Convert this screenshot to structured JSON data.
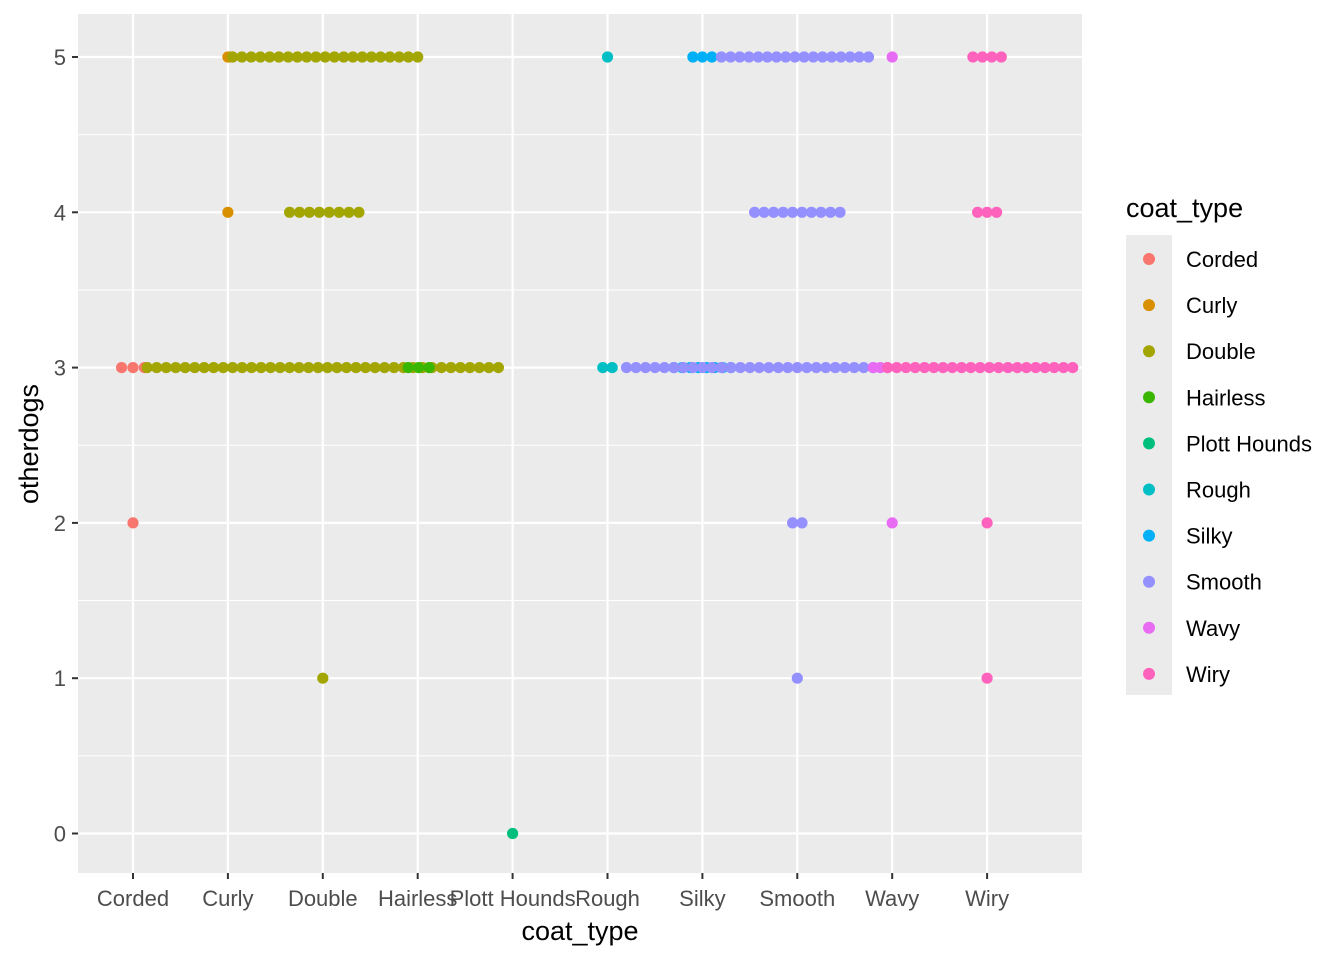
{
  "chart_data": {
    "type": "scatter",
    "xlabel": "coat_type",
    "ylabel": "otherdogs",
    "categories": [
      "Corded",
      "Curly",
      "Double",
      "Hairless",
      "Plott Hounds",
      "Rough",
      "Silky",
      "Smooth",
      "Wavy",
      "Wiry"
    ],
    "y_ticks": [
      0,
      1,
      2,
      3,
      4,
      5
    ],
    "ylim": [
      -0.27,
      5.27
    ],
    "legend": {
      "title": "coat_type",
      "placement": "right",
      "entries": [
        {
          "label": "Corded",
          "color": "#F8766D"
        },
        {
          "label": "Curly",
          "color": "#D89000"
        },
        {
          "label": "Double",
          "color": "#A3A500"
        },
        {
          "label": "Hairless",
          "color": "#39B600"
        },
        {
          "label": "Plott Hounds",
          "color": "#00BF7D"
        },
        {
          "label": "Rough",
          "color": "#00BFC4"
        },
        {
          "label": "Silky",
          "color": "#00B0F6"
        },
        {
          "label": "Smooth",
          "color": "#9590FF"
        },
        {
          "label": "Wavy",
          "color": "#E76BF3"
        },
        {
          "label": "Wiry",
          "color": "#FF62BC"
        }
      ]
    },
    "point_runs": [
      {
        "series": "Corded",
        "y": 3,
        "x_start": 0.88,
        "x_end": 1.12,
        "count": 3
      },
      {
        "series": "Corded",
        "y": 2,
        "x_start": 1.0,
        "x_end": 1.0,
        "count": 1
      },
      {
        "series": "Curly",
        "y": 5,
        "x_start": 2.0,
        "x_end": 2.02,
        "count": 2
      },
      {
        "series": "Curly",
        "y": 4,
        "x_start": 2.0,
        "x_end": 2.0,
        "count": 1
      },
      {
        "series": "Double",
        "y": 5,
        "x_start": 2.05,
        "x_end": 4.0,
        "count": 21
      },
      {
        "series": "Double",
        "y": 4,
        "x_start": 2.65,
        "x_end": 3.38,
        "count": 8
      },
      {
        "series": "Double",
        "y": 3,
        "x_start": 1.15,
        "x_end": 4.85,
        "count": 38
      },
      {
        "series": "Double",
        "y": 1,
        "x_start": 3.0,
        "x_end": 3.0,
        "count": 1
      },
      {
        "series": "Hairless",
        "y": 3,
        "x_start": 3.9,
        "x_end": 4.12,
        "count": 3
      },
      {
        "series": "Plott Hounds",
        "y": 0,
        "x_start": 5.0,
        "x_end": 5.0,
        "count": 1
      },
      {
        "series": "Rough",
        "y": 5,
        "x_start": 6.0,
        "x_end": 6.0,
        "count": 1
      },
      {
        "series": "Rough",
        "y": 3,
        "x_start": 5.95,
        "x_end": 6.05,
        "count": 2
      },
      {
        "series": "Silky",
        "y": 5,
        "x_start": 6.9,
        "x_end": 7.1,
        "count": 3
      },
      {
        "series": "Silky",
        "y": 3,
        "x_start": 6.7,
        "x_end": 7.3,
        "count": 8
      },
      {
        "series": "Smooth",
        "y": 5,
        "x_start": 7.2,
        "x_end": 8.75,
        "count": 17
      },
      {
        "series": "Smooth",
        "y": 4,
        "x_start": 7.55,
        "x_end": 8.45,
        "count": 10
      },
      {
        "series": "Smooth",
        "y": 3,
        "x_start": 6.2,
        "x_end": 8.8,
        "count": 27
      },
      {
        "series": "Smooth",
        "y": 2,
        "x_start": 7.95,
        "x_end": 8.05,
        "count": 2
      },
      {
        "series": "Smooth",
        "y": 1,
        "x_start": 8.0,
        "x_end": 8.0,
        "count": 1
      },
      {
        "series": "Wavy",
        "y": 5,
        "x_start": 9.0,
        "x_end": 9.0,
        "count": 1
      },
      {
        "series": "Wavy",
        "y": 3,
        "x_start": 8.8,
        "x_end": 8.95,
        "count": 3
      },
      {
        "series": "Wavy",
        "y": 2,
        "x_start": 9.0,
        "x_end": 9.0,
        "count": 1
      },
      {
        "series": "Wiry",
        "y": 5,
        "x_start": 9.85,
        "x_end": 10.15,
        "count": 4
      },
      {
        "series": "Wiry",
        "y": 4,
        "x_start": 9.9,
        "x_end": 10.1,
        "count": 3
      },
      {
        "series": "Wiry",
        "y": 3,
        "x_start": 8.95,
        "x_end": 11.0,
        "count": 22
      },
      {
        "series": "Wiry",
        "y": 2,
        "x_start": 10.0,
        "x_end": 10.0,
        "count": 1
      },
      {
        "series": "Wiry",
        "y": 1,
        "x_start": 10.0,
        "x_end": 10.0,
        "count": 1
      }
    ]
  }
}
